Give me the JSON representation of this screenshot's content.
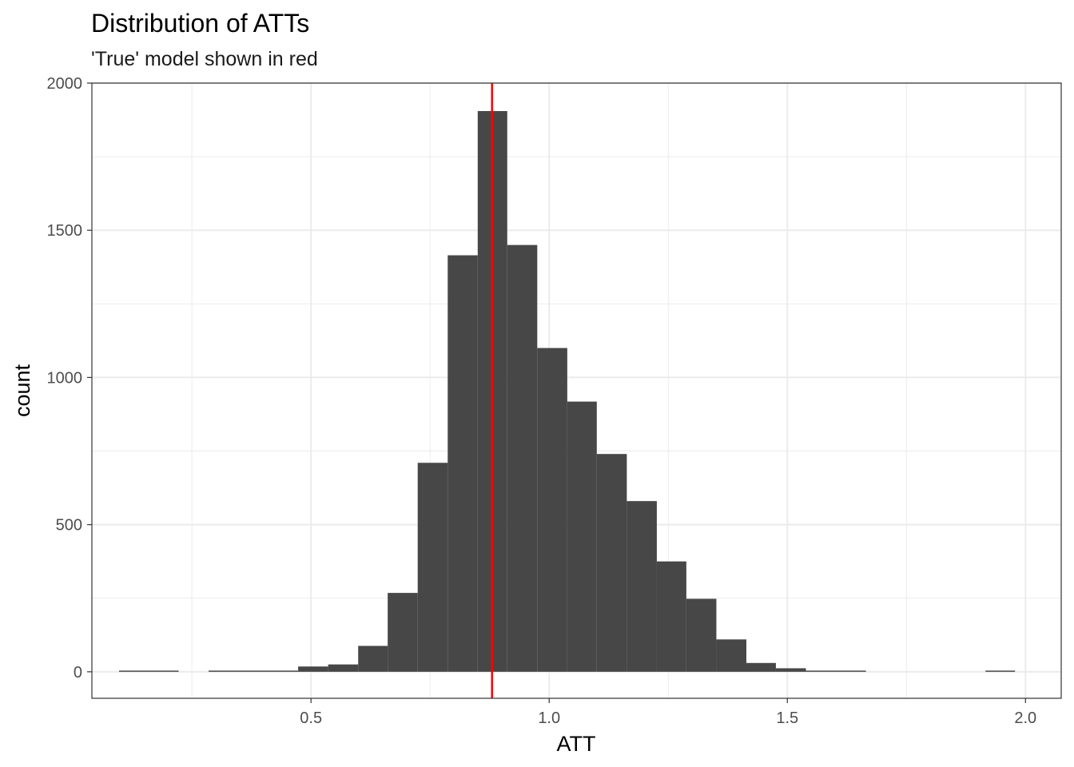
{
  "chart_data": {
    "type": "bar",
    "title": "Distribution of ATTs",
    "subtitle": "'True' model shown in red",
    "xlabel": "ATT",
    "ylabel": "count",
    "xlim": [
      0.04,
      2.075
    ],
    "ylim": [
      -90,
      2000
    ],
    "x_ticks": [
      0.5,
      1.0,
      1.5,
      2.0
    ],
    "x_tick_labels": [
      "0.5",
      "1.0",
      "1.5",
      "2.0"
    ],
    "y_ticks": [
      0,
      500,
      1000,
      1500,
      2000
    ],
    "y_tick_labels": [
      "0",
      "500",
      "1000",
      "1500",
      "2000"
    ],
    "grid": true,
    "bin_width": 0.0627,
    "bins": [
      {
        "x0": 0.097,
        "x1": 0.16,
        "count": 1
      },
      {
        "x0": 0.16,
        "x1": 0.222,
        "count": 1
      },
      {
        "x0": 0.285,
        "x1": 0.348,
        "count": 1
      },
      {
        "x0": 0.348,
        "x1": 0.411,
        "count": 2
      },
      {
        "x0": 0.411,
        "x1": 0.473,
        "count": 1
      },
      {
        "x0": 0.473,
        "x1": 0.536,
        "count": 18
      },
      {
        "x0": 0.536,
        "x1": 0.599,
        "count": 25
      },
      {
        "x0": 0.599,
        "x1": 0.661,
        "count": 88
      },
      {
        "x0": 0.661,
        "x1": 0.724,
        "count": 268
      },
      {
        "x0": 0.724,
        "x1": 0.787,
        "count": 710
      },
      {
        "x0": 0.787,
        "x1": 0.85,
        "count": 1415
      },
      {
        "x0": 0.85,
        "x1": 0.912,
        "count": 1905
      },
      {
        "x0": 0.912,
        "x1": 0.975,
        "count": 1450
      },
      {
        "x0": 0.975,
        "x1": 1.038,
        "count": 1100
      },
      {
        "x0": 1.038,
        "x1": 1.1,
        "count": 918
      },
      {
        "x0": 1.1,
        "x1": 1.163,
        "count": 740
      },
      {
        "x0": 1.163,
        "x1": 1.226,
        "count": 580
      },
      {
        "x0": 1.226,
        "x1": 1.288,
        "count": 375
      },
      {
        "x0": 1.288,
        "x1": 1.351,
        "count": 248
      },
      {
        "x0": 1.351,
        "x1": 1.414,
        "count": 110
      },
      {
        "x0": 1.414,
        "x1": 1.476,
        "count": 30
      },
      {
        "x0": 1.476,
        "x1": 1.539,
        "count": 12
      },
      {
        "x0": 1.539,
        "x1": 1.602,
        "count": 2
      },
      {
        "x0": 1.602,
        "x1": 1.665,
        "count": 1
      },
      {
        "x0": 1.916,
        "x1": 1.978,
        "count": 1
      }
    ],
    "reference_line": {
      "x": 0.88,
      "color": "#ff0000"
    },
    "bar_color": "#474747"
  }
}
